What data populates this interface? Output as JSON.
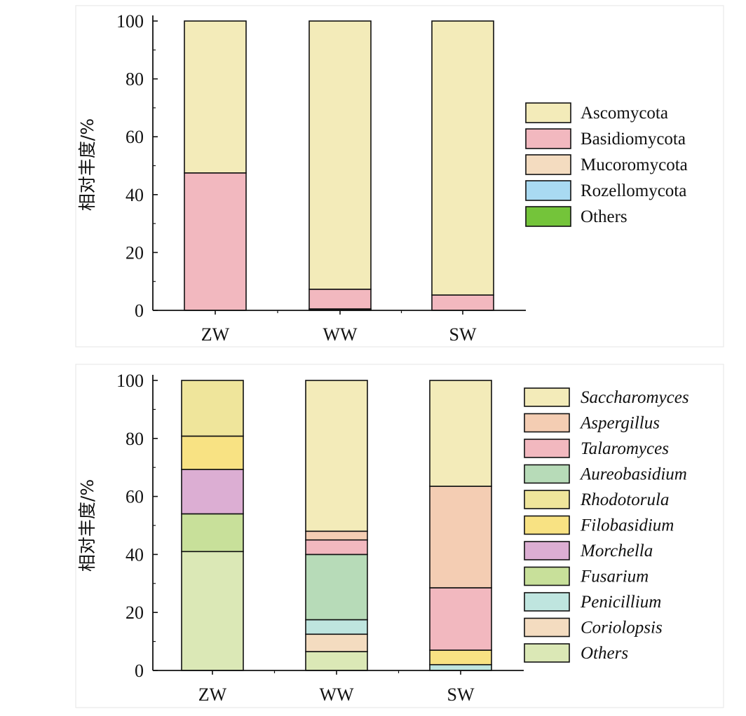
{
  "chart_data": [
    {
      "type": "bar",
      "stacked": true,
      "categories": [
        "ZW",
        "WW",
        "SW"
      ],
      "ylabel": "相对丰度/%",
      "ylim": [
        0,
        100
      ],
      "yticks": [
        "0",
        "20",
        "40",
        "60",
        "80",
        "100"
      ],
      "legend_position": "right",
      "italic_legend": false,
      "series": [
        {
          "name": "Ascomycota",
          "color": "#f3ebb9",
          "values": [
            52.5,
            92.7,
            94.7
          ]
        },
        {
          "name": "Basidiomycota",
          "color": "#f2b8bf",
          "values": [
            47.5,
            6.8,
            5.3
          ]
        },
        {
          "name": "Mucoromycota",
          "color": "#f4dcc0",
          "values": [
            0,
            0.3,
            0
          ]
        },
        {
          "name": "Rozellomycota",
          "color": "#a9daf2",
          "values": [
            0,
            0.2,
            0
          ]
        },
        {
          "name": "Others",
          "color": "#74c43a",
          "values": [
            0,
            0,
            0
          ]
        }
      ]
    },
    {
      "type": "bar",
      "stacked": true,
      "categories": [
        "ZW",
        "WW",
        "SW"
      ],
      "ylabel": "相对丰度/%",
      "ylim": [
        0,
        100
      ],
      "yticks": [
        "0",
        "20",
        "40",
        "60",
        "80",
        "100"
      ],
      "legend_position": "right",
      "italic_legend": true,
      "series": [
        {
          "name": "Others",
          "color": "#dbe8b6",
          "values": [
            41,
            6.5,
            0
          ]
        },
        {
          "name": "Coriolopsis",
          "color": "#f4dcc0",
          "values": [
            0,
            6,
            0
          ]
        },
        {
          "name": "Penicillium",
          "color": "#bfe5df",
          "values": [
            0,
            5,
            2
          ]
        },
        {
          "name": "Fusarium",
          "color": "#c8e09a",
          "values": [
            13,
            0,
            0
          ]
        },
        {
          "name": "Morchella",
          "color": "#dcaed3",
          "values": [
            15.3,
            0,
            0
          ]
        },
        {
          "name": "Filobasidium",
          "color": "#f8e283",
          "values": [
            11.5,
            0,
            5
          ]
        },
        {
          "name": "Rhodotorula",
          "color": "#efe59b",
          "values": [
            19.2,
            0,
            0
          ]
        },
        {
          "name": "Aureobasidium",
          "color": "#b7dbb8",
          "values": [
            0,
            22.5,
            0
          ]
        },
        {
          "name": "Talaromyces",
          "color": "#f2b8bf",
          "values": [
            0,
            5,
            21.5
          ]
        },
        {
          "name": "Aspergillus",
          "color": "#f4cdb3",
          "values": [
            0,
            3,
            35
          ]
        },
        {
          "name": "Saccharomyces",
          "color": "#f3ebb9",
          "values": [
            0,
            52,
            36.5
          ]
        }
      ]
    }
  ]
}
